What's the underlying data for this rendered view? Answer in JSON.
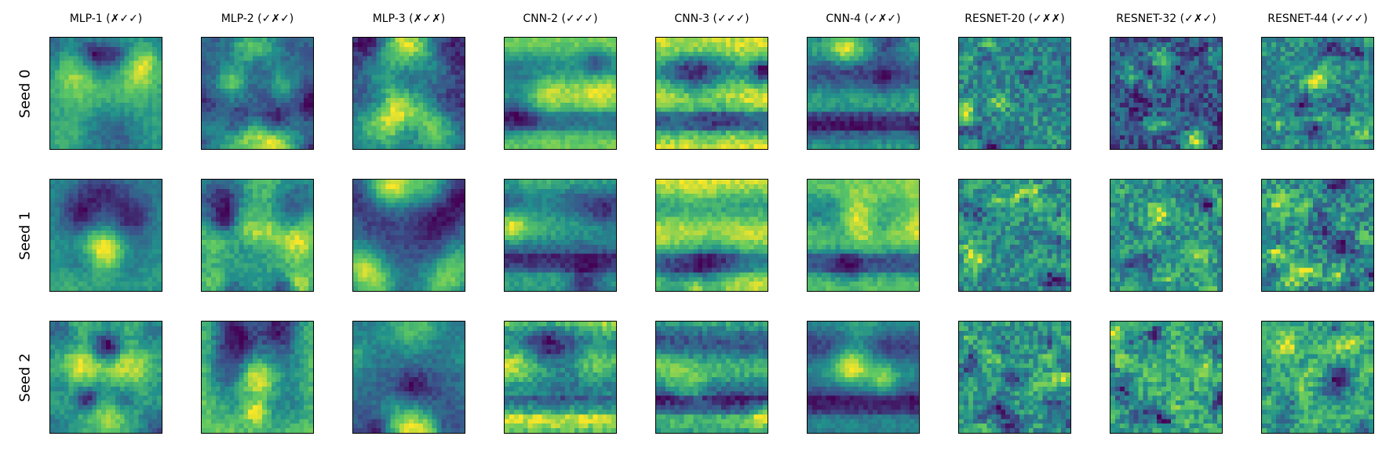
{
  "figure": {
    "columns": [
      "MLP-1 (✗✓✓)",
      "MLP-2 (✓✗✓)",
      "MLP-3 (✗✓✗)",
      "CNN-2 (✓✓✓)",
      "CNN-3 (✓✓✓)",
      "CNN-4 (✓✗✓)",
      "RESNET-20 (✓✗✗)",
      "RESNET-32 (✓✗✓)",
      "RESNET-44 (✓✓✓)"
    ],
    "rows": [
      "Seed 0",
      "Seed 1",
      "Seed 2"
    ],
    "colormap": [
      "#440154",
      "#3b528b",
      "#21918c",
      "#5ec962",
      "#fde725"
    ],
    "panel_style": {
      "MLP": "blotchy symmetric pattern",
      "CNN": "horizontal banded pattern with dark spots",
      "RESNET": "fine-grained noisy texture"
    }
  }
}
